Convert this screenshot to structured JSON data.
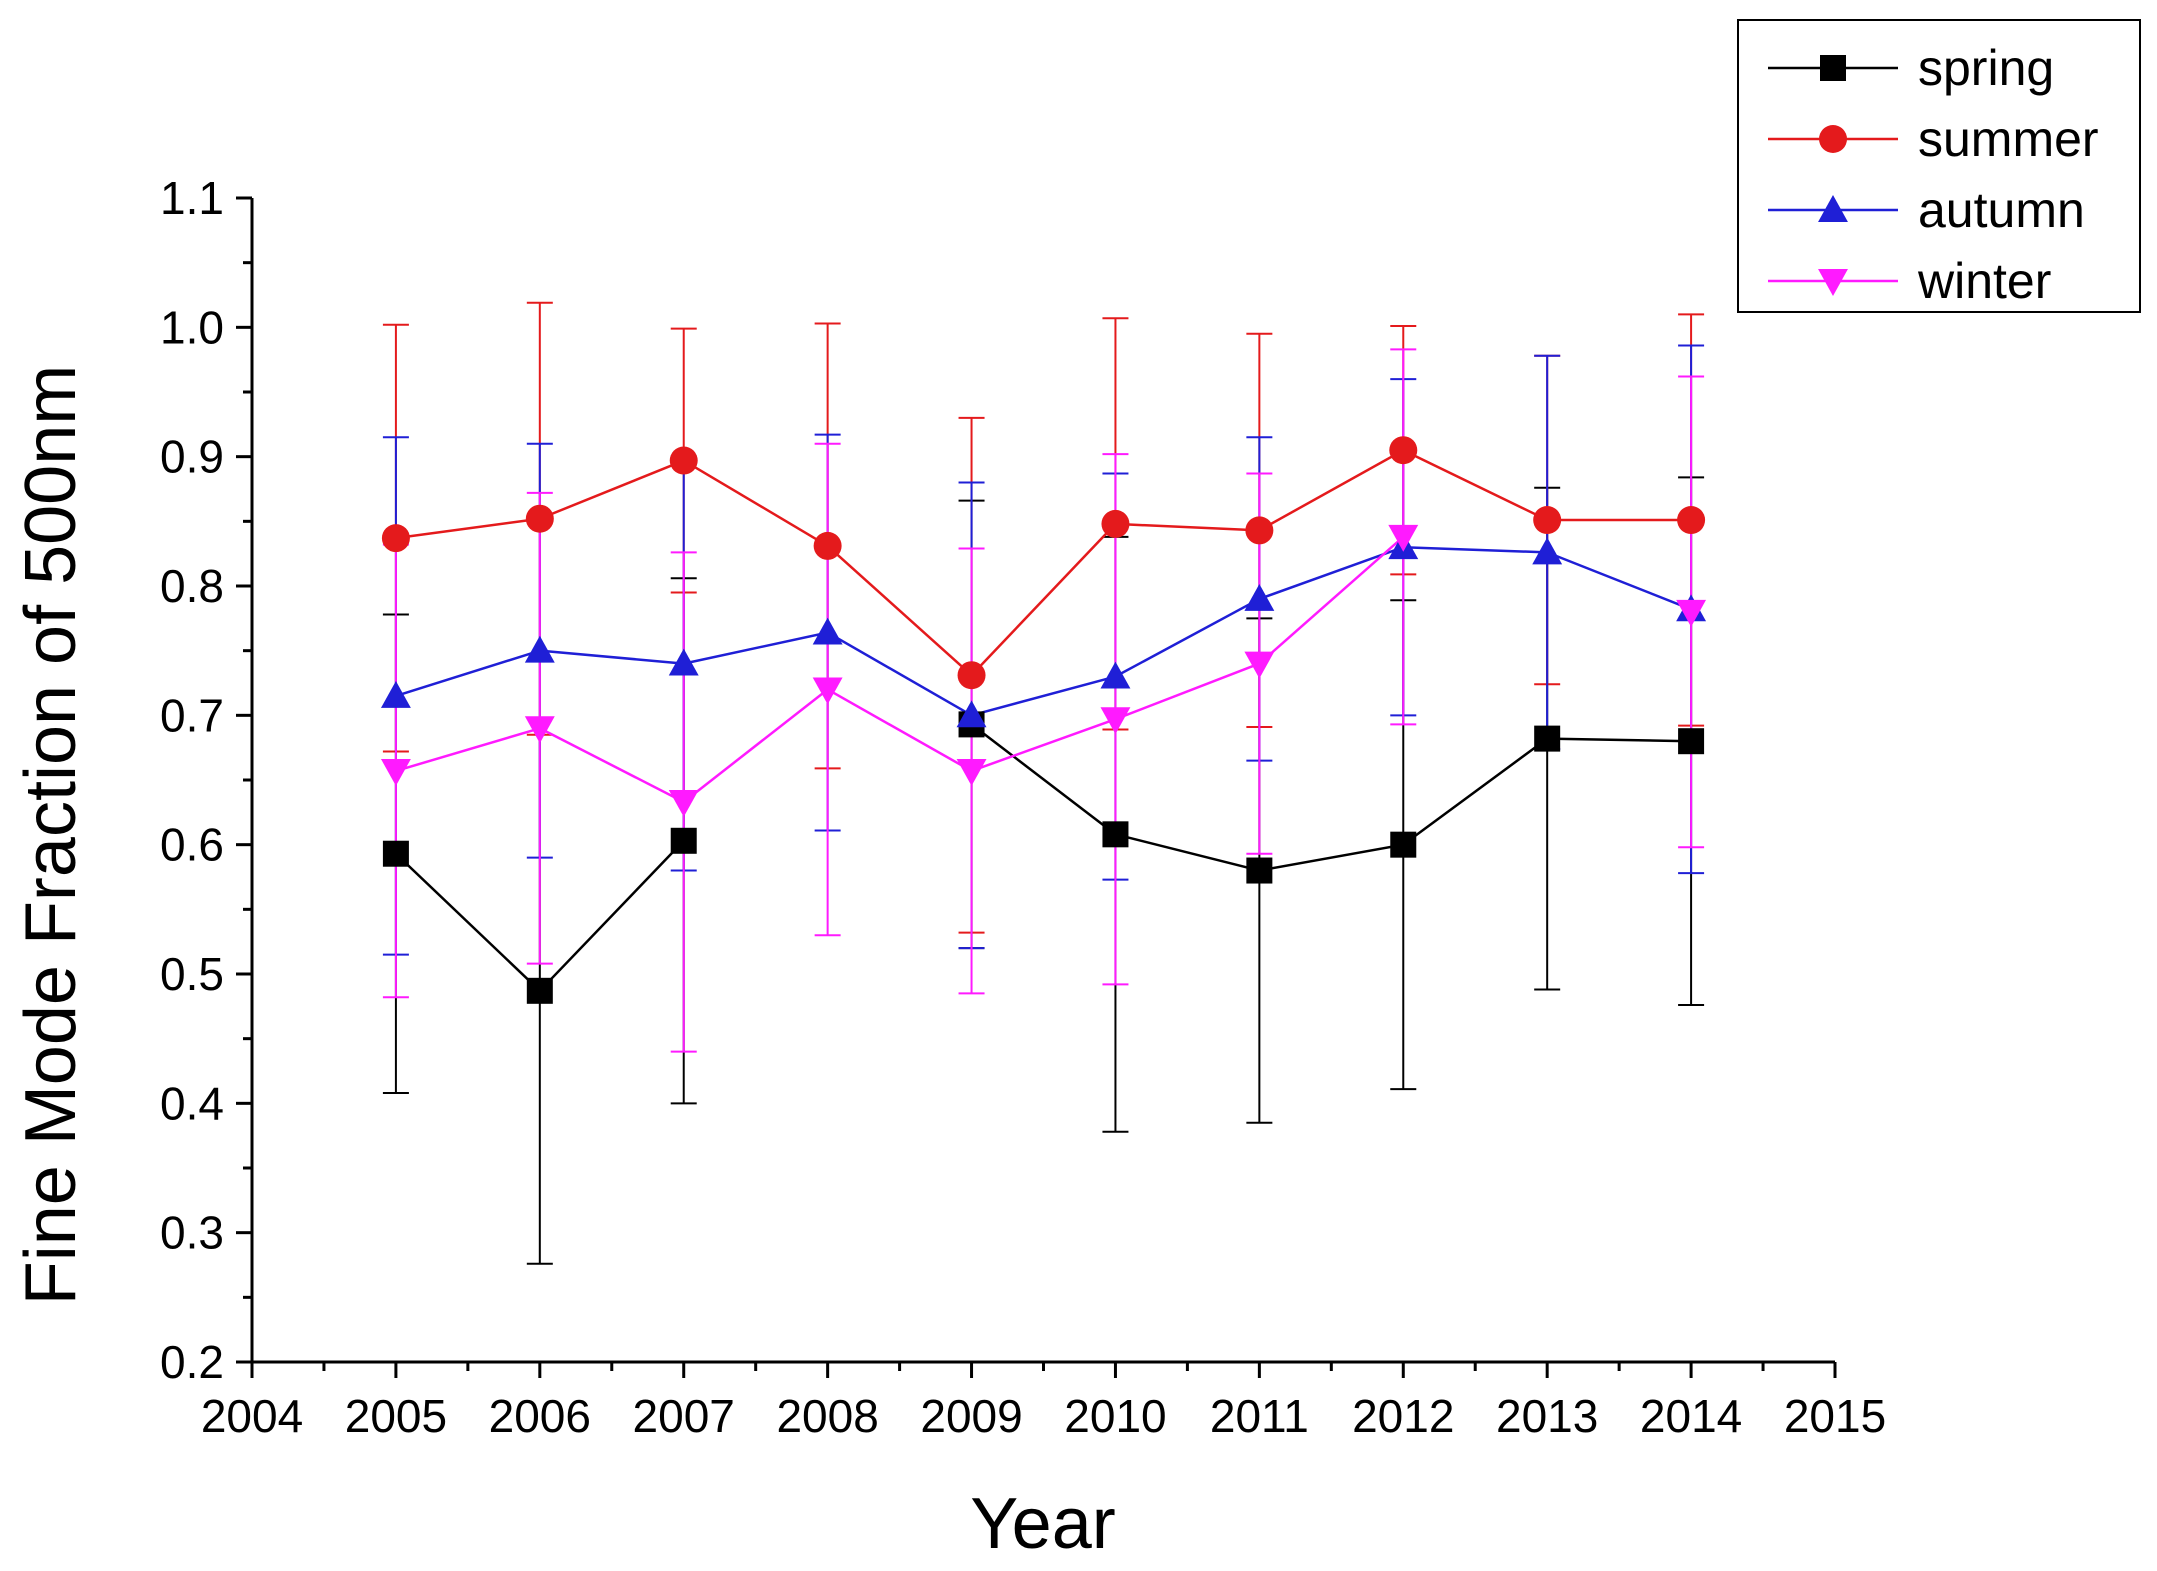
{
  "chart_data": {
    "type": "line",
    "title": "",
    "xlabel": "Year",
    "ylabel": "Fine Mode Fraction of 500nm",
    "xlim": [
      2004,
      2015
    ],
    "ylim": [
      0.2,
      1.1
    ],
    "x_ticks": [
      2004,
      2005,
      2006,
      2007,
      2008,
      2009,
      2010,
      2011,
      2012,
      2013,
      2014,
      2015
    ],
    "x_tick_labels": [
      "2004",
      "2005",
      "2006",
      "2007",
      "2008",
      "2009",
      "2010",
      "2011",
      "2012",
      "2013",
      "2014",
      "2015"
    ],
    "y_ticks": [
      0.2,
      0.3,
      0.4,
      0.5,
      0.6,
      0.7,
      0.8,
      0.9,
      1.0,
      1.1
    ],
    "y_tick_labels": [
      "0.2",
      "0.3",
      "0.4",
      "0.5",
      "0.6",
      "0.7",
      "0.8",
      "0.9",
      "1.0",
      "1.1"
    ],
    "grid": false,
    "legend_position": "top-right",
    "x": [
      2005,
      2006,
      2007,
      2008,
      2009,
      2010,
      2011,
      2012,
      2013,
      2014
    ],
    "series": [
      {
        "name": "spring",
        "color": "#000000",
        "marker": "square",
        "values": [
          0.593,
          0.487,
          0.603,
          null,
          0.693,
          0.608,
          0.58,
          0.6,
          0.682,
          0.68
        ],
        "err": [
          0.185,
          0.211,
          0.203,
          null,
          0.173,
          0.23,
          0.195,
          0.189,
          0.194,
          0.204
        ]
      },
      {
        "name": "summer",
        "color": "#e41a1c",
        "marker": "circle",
        "values": [
          0.837,
          0.852,
          0.897,
          0.831,
          0.731,
          0.848,
          0.843,
          0.905,
          0.851,
          0.851
        ],
        "err": [
          0.165,
          0.167,
          0.102,
          0.172,
          0.199,
          0.159,
          0.152,
          0.096,
          0.127,
          0.159
        ]
      },
      {
        "name": "autumn",
        "color": "#1f1fd6",
        "marker": "triangle-up",
        "values": [
          0.715,
          0.75,
          0.74,
          0.764,
          0.7,
          0.73,
          0.79,
          0.83,
          0.826,
          0.782
        ],
        "err": [
          0.2,
          0.16,
          0.16,
          0.153,
          0.18,
          0.157,
          0.125,
          0.13,
          0.152,
          0.204
        ]
      },
      {
        "name": "winter",
        "color": "#ff1aff",
        "marker": "triangle-down",
        "values": [
          0.657,
          0.69,
          0.633,
          0.72,
          0.657,
          0.697,
          0.74,
          0.838,
          null,
          0.78
        ],
        "err": [
          0.175,
          0.182,
          0.193,
          0.19,
          0.172,
          0.205,
          0.147,
          0.145,
          null,
          0.182
        ]
      }
    ]
  }
}
